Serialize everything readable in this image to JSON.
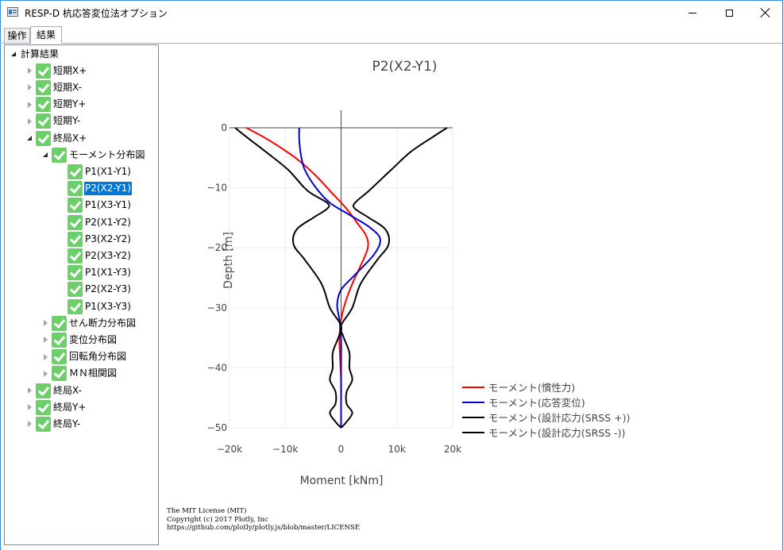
{
  "window": {
    "title": "RESP-D 杭応答変位法オプション"
  },
  "tabs": [
    "操作",
    "結果"
  ],
  "tree": [
    {
      "label": "計算結果",
      "level": 0,
      "state": "expanded",
      "check": false
    },
    {
      "label": "短期X+",
      "level": 1,
      "state": "collapsed",
      "check": true
    },
    {
      "label": "短期X-",
      "level": 1,
      "state": "collapsed",
      "check": true
    },
    {
      "label": "短期Y+",
      "level": 1,
      "state": "collapsed",
      "check": true
    },
    {
      "label": "短期Y-",
      "level": 1,
      "state": "collapsed",
      "check": true
    },
    {
      "label": "終局X+",
      "level": 1,
      "state": "expanded",
      "check": true
    },
    {
      "label": "モーメント分布図",
      "level": 2,
      "state": "expanded",
      "check": true
    },
    {
      "label": "P1(X1-Y1)",
      "level": 3,
      "state": "leaf",
      "check": true
    },
    {
      "label": "P2(X2-Y1)",
      "level": 3,
      "state": "leaf",
      "check": true,
      "selected": true
    },
    {
      "label": "P1(X3-Y1)",
      "level": 3,
      "state": "leaf",
      "check": true
    },
    {
      "label": "P2(X1-Y2)",
      "level": 3,
      "state": "leaf",
      "check": true
    },
    {
      "label": "P3(X2-Y2)",
      "level": 3,
      "state": "leaf",
      "check": true
    },
    {
      "label": "P2(X3-Y2)",
      "level": 3,
      "state": "leaf",
      "check": true
    },
    {
      "label": "P1(X1-Y3)",
      "level": 3,
      "state": "leaf",
      "check": true
    },
    {
      "label": "P2(X2-Y3)",
      "level": 3,
      "state": "leaf",
      "check": true
    },
    {
      "label": "P1(X3-Y3)",
      "level": 3,
      "state": "leaf",
      "check": true
    },
    {
      "label": "せん断力分布図",
      "level": 2,
      "state": "collapsed",
      "check": true
    },
    {
      "label": "変位分布図",
      "level": 2,
      "state": "collapsed",
      "check": true
    },
    {
      "label": "回転角分布図",
      "level": 2,
      "state": "collapsed",
      "check": true
    },
    {
      "label": "ＭＮ相関図",
      "level": 2,
      "state": "collapsed",
      "check": true
    },
    {
      "label": "終局X-",
      "level": 1,
      "state": "collapsed",
      "check": true
    },
    {
      "label": "終局Y+",
      "level": 1,
      "state": "collapsed",
      "check": true
    },
    {
      "label": "終局Y-",
      "level": 1,
      "state": "collapsed",
      "check": true
    }
  ],
  "license": [
    "The MIT License (MIT)",
    "Copyright (c) 2017 Plotly, Inc",
    "https://github.com/plotly/plotly.js/blob/master/LICENSE"
  ],
  "chart_data": {
    "type": "line",
    "title": "P2(X2-Y1)",
    "xlabel": "Moment [kNm]",
    "ylabel": "Depth [m]",
    "xlim": [
      -20000,
      20000
    ],
    "ylim": [
      -50,
      0
    ],
    "x_ticks": [
      -20000,
      -10000,
      0,
      10000,
      20000
    ],
    "x_tick_labels": [
      "−20k",
      "−10k",
      "0",
      "10k",
      "20k"
    ],
    "y_ticks": [
      0,
      -10,
      -20,
      -30,
      -40,
      -50
    ],
    "y_tick_labels": [
      "0",
      "−10",
      "−20",
      "−30",
      "−40",
      "−50"
    ],
    "grid": true,
    "legend_position": "right",
    "series": [
      {
        "name": "モーメント(慣性力)",
        "color": "#ff0000",
        "points": [
          [
            -17000,
            0
          ],
          [
            -14000,
            -1.5
          ],
          [
            -10500,
            -3.5
          ],
          [
            -7500,
            -5.5
          ],
          [
            -4500,
            -8
          ],
          [
            -1500,
            -11
          ],
          [
            1000,
            -13.5
          ],
          [
            3000,
            -16
          ],
          [
            4500,
            -18
          ],
          [
            4800,
            -20
          ],
          [
            3500,
            -23
          ],
          [
            2000,
            -26
          ],
          [
            800,
            -29
          ],
          [
            0,
            -32
          ],
          [
            -300,
            -35
          ],
          [
            -200,
            -38
          ],
          [
            0,
            -42
          ],
          [
            0,
            -46
          ],
          [
            0,
            -50
          ]
        ]
      },
      {
        "name": "モーメント(応答変位)",
        "color": "#0000cc",
        "points": [
          [
            -7500,
            0
          ],
          [
            -7500,
            -2
          ],
          [
            -7200,
            -4.5
          ],
          [
            -6500,
            -7
          ],
          [
            -4500,
            -10
          ],
          [
            -2000,
            -12.5
          ],
          [
            1500,
            -14.5
          ],
          [
            5000,
            -16.5
          ],
          [
            7000,
            -18.5
          ],
          [
            6000,
            -21
          ],
          [
            2500,
            -24.5
          ],
          [
            0,
            -27
          ],
          [
            -700,
            -29.5
          ],
          [
            -300,
            -32
          ],
          [
            0,
            -35
          ],
          [
            0,
            -40
          ],
          [
            0,
            -45
          ],
          [
            0,
            -50
          ]
        ]
      },
      {
        "name": "モーメント(設計応力(SRSS +))",
        "color": "#000000",
        "points": [
          [
            19000,
            0
          ],
          [
            16500,
            -1.5
          ],
          [
            12500,
            -4
          ],
          [
            9000,
            -7
          ],
          [
            5000,
            -10.5
          ],
          [
            2500,
            -12.5
          ],
          [
            2500,
            -13.5
          ],
          [
            5000,
            -15
          ],
          [
            8000,
            -17
          ],
          [
            8500,
            -19.5
          ],
          [
            6500,
            -22
          ],
          [
            3500,
            -26
          ],
          [
            2000,
            -30
          ],
          [
            0,
            -33
          ],
          [
            500,
            -35
          ],
          [
            1500,
            -37.5
          ],
          [
            1500,
            -40
          ],
          [
            2000,
            -42
          ],
          [
            1000,
            -44
          ],
          [
            1000,
            -46
          ],
          [
            2000,
            -47.5
          ],
          [
            1000,
            -49
          ],
          [
            0,
            -50
          ]
        ]
      },
      {
        "name": "モーメント(設計応力(SRSS -))",
        "color": "#000000",
        "points": [
          [
            -19000,
            0
          ],
          [
            -17000,
            -1.5
          ],
          [
            -13500,
            -4
          ],
          [
            -9500,
            -7
          ],
          [
            -6000,
            -10.5
          ],
          [
            -2500,
            -12.5
          ],
          [
            -2500,
            -13.5
          ],
          [
            -5000,
            -15
          ],
          [
            -8000,
            -17
          ],
          [
            -8500,
            -19.5
          ],
          [
            -6500,
            -22
          ],
          [
            -3500,
            -26
          ],
          [
            -2000,
            -30
          ],
          [
            0,
            -33
          ],
          [
            -500,
            -35
          ],
          [
            -1500,
            -37.5
          ],
          [
            -1500,
            -40
          ],
          [
            -2000,
            -42
          ],
          [
            -1000,
            -44
          ],
          [
            -1000,
            -46
          ],
          [
            -2000,
            -47.5
          ],
          [
            -1000,
            -49
          ],
          [
            0,
            -50
          ]
        ]
      }
    ]
  }
}
